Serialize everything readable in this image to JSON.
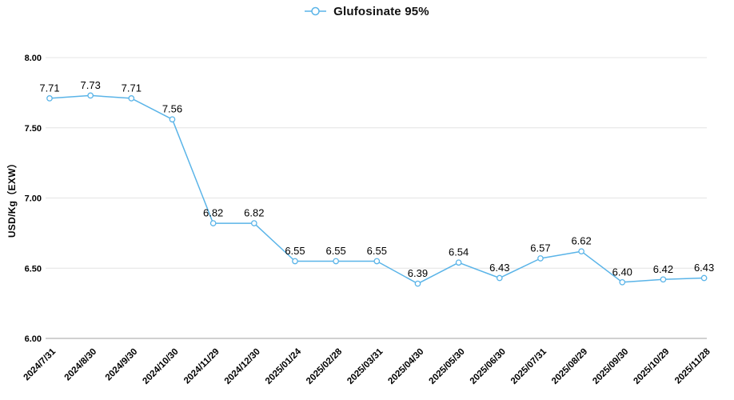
{
  "legend": {
    "label": "Glufosinate 95%"
  },
  "chart_data": {
    "type": "line",
    "title": "Glufosinate 95%",
    "xlabel": "",
    "ylabel": "USD/Kg（EXW）",
    "categories": [
      "2024/7/31",
      "2024/8/30",
      "2024/9/30",
      "2024/10/30",
      "2024/11/29",
      "2024/12/30",
      "2025/01/24",
      "2025/02/28",
      "2025/03/31",
      "2025/04/30",
      "2025/05/30",
      "2025/06/30",
      "2025/07/31",
      "2025/08/29",
      "2025/09/30",
      "2025/10/29",
      "2025/11/28"
    ],
    "series": [
      {
        "name": "Glufosinate 95%",
        "values": [
          7.71,
          7.73,
          7.71,
          7.56,
          6.82,
          6.82,
          6.55,
          6.55,
          6.55,
          6.39,
          6.54,
          6.43,
          6.57,
          6.62,
          6.4,
          6.42,
          6.43
        ]
      }
    ],
    "point_labels": [
      "7.71",
      "7.73",
      "7.71",
      "7.56",
      "6.82",
      "6.82",
      "6.55",
      "6.55",
      "6.55",
      "6.39",
      "6.54",
      "6.43",
      "6.57",
      "6.62",
      "6.40",
      "6.42",
      "6.43"
    ],
    "ylim": [
      6.0,
      8.0
    ],
    "ytick_labels": [
      "8.00",
      "7.50",
      "7.00",
      "6.50",
      "6.00"
    ],
    "ytick_values": [
      8.0,
      7.5,
      7.0,
      6.5,
      6.0
    ],
    "grid": true,
    "legend_position": "top-center",
    "colors": {
      "line": "#5ab4e8",
      "marker_fill": "#ffffff",
      "grid": "#e4e4e4",
      "axis": "#a0a0a0",
      "text": "#000000"
    }
  }
}
